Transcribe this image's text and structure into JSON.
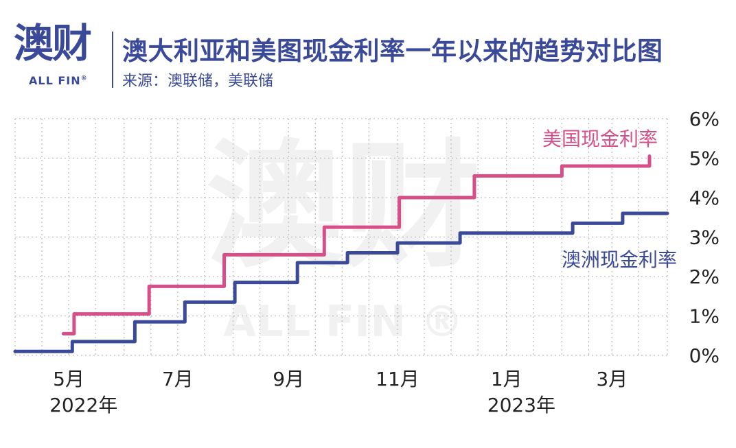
{
  "header": {
    "logo_text": "澳财",
    "logo_sub": "ALL FIN",
    "logo_reg": "®",
    "title": "澳大利亚和美图现金利率一年以来的趋势对比图",
    "source": "来源：澳联储，美联储"
  },
  "colors": {
    "brand": "#3a4a98",
    "us": "#d64f88",
    "au": "#3a4a98",
    "grid": "#bdbdbd"
  },
  "chart_data": {
    "type": "line",
    "step": true,
    "title": "澳大利亚和美图现金利率一年以来的趋势对比图",
    "x_ticks": [
      {
        "x": "2022-05-01",
        "label": "5月"
      },
      {
        "x": "2022-07-01",
        "label": "7月"
      },
      {
        "x": "2022-09-01",
        "label": "9月"
      },
      {
        "x": "2022-11-01",
        "label": "11月"
      },
      {
        "x": "2023-01-01",
        "label": "1月"
      },
      {
        "x": "2023-03-01",
        "label": "3月"
      }
    ],
    "year_labels": [
      {
        "x": "2022-05-01",
        "label": "2022年"
      },
      {
        "x": "2023-01-01",
        "label": "2023年"
      }
    ],
    "y_ticks": [
      "0%",
      "1%",
      "2%",
      "3%",
      "4%",
      "5%",
      "6%"
    ],
    "ylim": [
      0,
      6
    ],
    "xlim": [
      "2022-04-01",
      "2023-04-01"
    ],
    "grid": true,
    "series": [
      {
        "name": "美国现金利率",
        "points": [
          [
            "2022-04-28",
            0.55
          ],
          [
            "2022-05-04",
            0.55
          ],
          [
            "2022-05-04",
            1.05
          ],
          [
            "2022-06-15",
            1.05
          ],
          [
            "2022-06-15",
            1.75
          ],
          [
            "2022-07-27",
            1.75
          ],
          [
            "2022-07-27",
            2.55
          ],
          [
            "2022-09-21",
            2.55
          ],
          [
            "2022-09-21",
            3.25
          ],
          [
            "2022-11-02",
            3.25
          ],
          [
            "2022-11-02",
            4.0
          ],
          [
            "2022-12-14",
            4.0
          ],
          [
            "2022-12-14",
            4.55
          ],
          [
            "2023-02-01",
            4.55
          ],
          [
            "2023-02-01",
            4.8
          ],
          [
            "2023-03-22",
            4.8
          ],
          [
            "2023-03-22",
            5.05
          ]
        ]
      },
      {
        "name": "澳洲现金利率",
        "points": [
          [
            "2022-04-01",
            0.1
          ],
          [
            "2022-05-03",
            0.1
          ],
          [
            "2022-05-03",
            0.35
          ],
          [
            "2022-06-07",
            0.35
          ],
          [
            "2022-06-07",
            0.85
          ],
          [
            "2022-07-05",
            0.85
          ],
          [
            "2022-07-05",
            1.35
          ],
          [
            "2022-08-02",
            1.35
          ],
          [
            "2022-08-02",
            1.85
          ],
          [
            "2022-09-06",
            1.85
          ],
          [
            "2022-09-06",
            2.35
          ],
          [
            "2022-10-04",
            2.35
          ],
          [
            "2022-10-04",
            2.6
          ],
          [
            "2022-11-01",
            2.6
          ],
          [
            "2022-11-01",
            2.85
          ],
          [
            "2022-12-06",
            2.85
          ],
          [
            "2022-12-06",
            3.1
          ],
          [
            "2023-02-07",
            3.1
          ],
          [
            "2023-02-07",
            3.35
          ],
          [
            "2023-03-07",
            3.35
          ],
          [
            "2023-03-07",
            3.6
          ],
          [
            "2023-04-01",
            3.6
          ]
        ]
      }
    ]
  }
}
